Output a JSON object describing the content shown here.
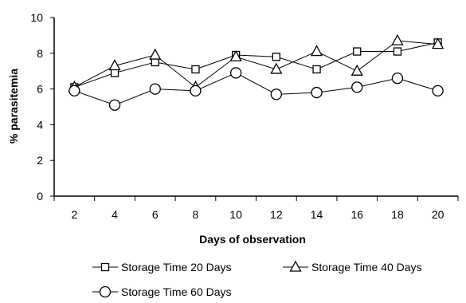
{
  "chart_data": {
    "type": "line",
    "title": "",
    "xlabel": "Days of observation",
    "ylabel": "% parasitemia",
    "x": [
      2,
      4,
      6,
      8,
      10,
      12,
      14,
      16,
      18,
      20
    ],
    "xlim": [
      1,
      21
    ],
    "ylim": [
      0,
      10
    ],
    "y_ticks": [
      0,
      2,
      4,
      6,
      8,
      10
    ],
    "grid": false,
    "legend_position": "bottom",
    "series": [
      {
        "name": "Storage Time 20 Days",
        "marker": "square",
        "values": [
          6.1,
          6.9,
          7.5,
          7.1,
          7.9,
          7.8,
          7.1,
          8.1,
          8.1,
          8.6
        ]
      },
      {
        "name": "Storage Time 40 Days",
        "marker": "triangle",
        "values": [
          6.1,
          7.3,
          7.9,
          6.1,
          7.8,
          7.1,
          8.1,
          7.0,
          8.7,
          8.5
        ]
      },
      {
        "name": "Storage Time 60 Days",
        "marker": "circle",
        "values": [
          5.9,
          5.1,
          6.0,
          5.9,
          6.9,
          5.7,
          5.8,
          6.1,
          6.6,
          5.9
        ]
      }
    ]
  }
}
